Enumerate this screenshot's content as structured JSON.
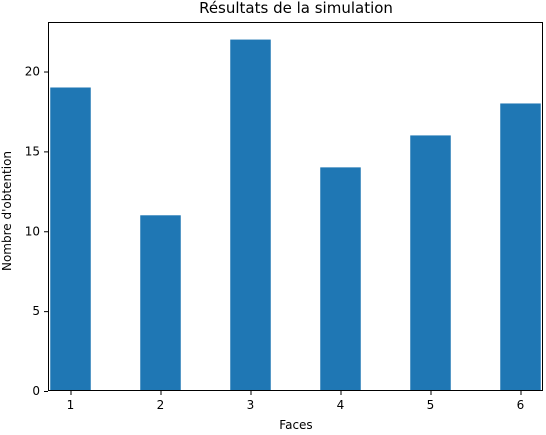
{
  "chart_data": {
    "type": "bar",
    "title": "Résultats de la simulation",
    "xlabel": "Faces",
    "ylabel": "Nombre d'obtention",
    "x": [
      1,
      2,
      3,
      4,
      5,
      6
    ],
    "values": [
      19,
      11,
      22,
      14,
      16,
      18
    ],
    "x_ticks": [
      "1",
      "2",
      "3",
      "4",
      "5",
      "6"
    ],
    "y_ticks": [
      "0",
      "5",
      "10",
      "15",
      "20"
    ],
    "xlim": [
      0.75,
      6.25
    ],
    "ylim": [
      0,
      23.1
    ],
    "bar_color": "#1f77b4",
    "grid": false
  }
}
